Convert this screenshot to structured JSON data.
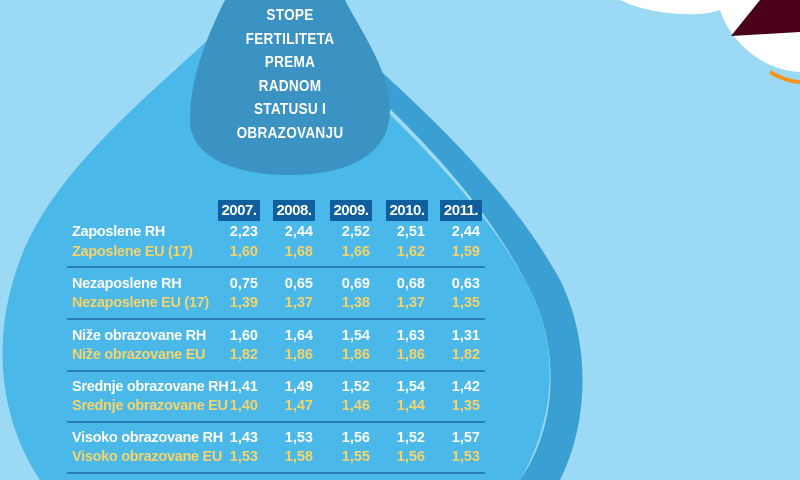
{
  "title_lines": [
    "STOPE",
    "FERTILITETA",
    "PREMA",
    "RADNOM",
    "STATUSU I",
    "OBRAZOVANJU"
  ],
  "colors": {
    "background": "#9cd9f5",
    "drop": "#4ab8e8",
    "title_drop": "#3b93c4",
    "header": "#0f5f9e",
    "rh_text": "#ffffff",
    "eu_text": "#f6d46a"
  },
  "chart_data": {
    "type": "table",
    "title": "STOPE FERTILITETA PREMA RADNOM STATUSU I OBRAZOVANJU",
    "columns": [
      "2007.",
      "2008.",
      "2009.",
      "2010.",
      "2011."
    ],
    "rows": [
      {
        "label": "Zaposlene RH",
        "group": "RH",
        "values": [
          "2,23",
          "2,44",
          "2,52",
          "2,51",
          "2,44"
        ]
      },
      {
        "label": "Zaposlene EU (17)",
        "group": "EU",
        "values": [
          "1,60",
          "1,68",
          "1,66",
          "1,62",
          "1,59"
        ]
      },
      {
        "label": "Nezaposlene RH",
        "group": "RH",
        "values": [
          "0,75",
          "0,65",
          "0,69",
          "0,68",
          "0,63"
        ]
      },
      {
        "label": "Nezaposlene EU (17)",
        "group": "EU",
        "values": [
          "1,39",
          "1,37",
          "1,38",
          "1,37",
          "1,35"
        ]
      },
      {
        "label": "Niže obrazovane RH",
        "group": "RH",
        "values": [
          "1,60",
          "1,64",
          "1,54",
          "1,63",
          "1,31"
        ]
      },
      {
        "label": "Niže obrazovane EU",
        "group": "EU",
        "values": [
          "1,82",
          "1,86",
          "1,86",
          "1,86",
          "1,82"
        ]
      },
      {
        "label": "Srednje obrazovane RH",
        "group": "RH",
        "values": [
          "1,41",
          "1,49",
          "1,52",
          "1,54",
          "1,42"
        ]
      },
      {
        "label": "Srednje obrazovane EU",
        "group": "EU",
        "values": [
          "1,40",
          "1,47",
          "1,46",
          "1,44",
          "1,35"
        ]
      },
      {
        "label": "Visoko obrazovane RH",
        "group": "RH",
        "values": [
          "1,43",
          "1,53",
          "1,56",
          "1,52",
          "1,57"
        ]
      },
      {
        "label": "Visoko obrazovane EU",
        "group": "EU",
        "values": [
          "1,53",
          "1,58",
          "1,55",
          "1,56",
          "1,53"
        ]
      }
    ]
  }
}
